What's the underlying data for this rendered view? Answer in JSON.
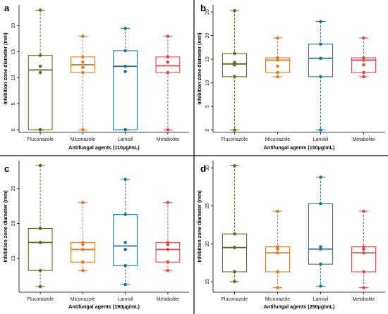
{
  "figure": {
    "colors": {
      "Fluconazole": "#5a6e1e",
      "Miconazole": "#e07b2a",
      "Lamisil": "#1f7799",
      "Metabolite": "#e84a4a"
    }
  },
  "chart_data": [
    {
      "panel": "a",
      "type": "box",
      "categories": [
        "Fluconazole",
        "Miconazole",
        "Lamisil",
        "Metabolite"
      ],
      "xlabel": "Antifungal agents (110µg/mL)",
      "ylabel": "Inhibition zone diameter (mm)",
      "ylim": [
        -0.5,
        24
      ],
      "yticks": [
        0,
        5,
        10,
        15,
        20
      ],
      "grid": false,
      "series": [
        {
          "box": {
            "min": 0,
            "q1": 0,
            "median": 11.5,
            "q3": 14.3,
            "max": 23
          },
          "points": [
            23,
            14.3,
            12.2,
            11,
            0,
            0
          ]
        },
        {
          "box": {
            "min": 0,
            "q1": 11,
            "median": 12.5,
            "q3": 14,
            "max": 18
          },
          "points": [
            18,
            14,
            13,
            12,
            11,
            0
          ]
        },
        {
          "box": {
            "min": 0,
            "q1": 0,
            "median": 12.2,
            "q3": 15.2,
            "max": 19.5
          },
          "points": [
            19.5,
            15.2,
            12.2,
            11.2,
            0,
            0
          ]
        },
        {
          "box": {
            "min": 0,
            "q1": 11,
            "median": 12.3,
            "q3": 14,
            "max": 18
          },
          "points": [
            18,
            14,
            13,
            11,
            11,
            0
          ]
        }
      ]
    },
    {
      "panel": "b",
      "type": "box",
      "categories": [
        "Fluconazole",
        "Miconazole",
        "Lamisil",
        "Metabolite"
      ],
      "xlabel": "Antifungal agents (150µg/mL)",
      "ylabel": "Inhibition zone diameter (mm)",
      "ylim": [
        -0.5,
        26.5
      ],
      "yticks": [
        0,
        5,
        10,
        15,
        20,
        25
      ],
      "grid": false,
      "series": [
        {
          "box": {
            "min": 0,
            "q1": 11.3,
            "median": 14,
            "q3": 16.2,
            "max": 25.3
          },
          "points": [
            25.3,
            16.2,
            14.3,
            13.8,
            11.3,
            0
          ]
        },
        {
          "box": {
            "min": 11.3,
            "q1": 12.2,
            "median": 14.8,
            "q3": 15.3,
            "max": 19.5
          },
          "points": [
            19.5,
            15.3,
            14.8,
            13.5,
            12.2,
            11.3
          ]
        },
        {
          "box": {
            "min": 0,
            "q1": 11.3,
            "median": 15.2,
            "q3": 18.2,
            "max": 23
          },
          "points": [
            23,
            18.2,
            15.2,
            15.2,
            11.3,
            0
          ]
        },
        {
          "box": {
            "min": 11.3,
            "q1": 12.2,
            "median": 14.8,
            "q3": 15.3,
            "max": 19.5
          },
          "points": [
            19.5,
            15.3,
            14.8,
            13.8,
            12.2,
            11.3
          ]
        }
      ]
    },
    {
      "panel": "c",
      "type": "box",
      "categories": [
        "Fluconazole",
        "Miconazole",
        "Lamisil",
        "Metabolite"
      ],
      "xlabel": "Antifungal agents (190µg/mL)",
      "ylabel": "Inhibition zone diameter (mm)",
      "ylim": [
        10.2,
        29
      ],
      "yticks": [
        15,
        20,
        25
      ],
      "grid": false,
      "series": [
        {
          "box": {
            "min": 11,
            "q1": 13.3,
            "median": 17.3,
            "q3": 19.3,
            "max": 28.3
          },
          "points": [
            28.3,
            19.3,
            17.3,
            17.3,
            13.3,
            11
          ]
        },
        {
          "box": {
            "min": 13.3,
            "q1": 14.5,
            "median": 16.3,
            "q3": 17.3,
            "max": 23
          },
          "points": [
            23,
            17.3,
            17,
            16.3,
            14.5,
            13.3
          ]
        },
        {
          "box": {
            "min": 11.3,
            "q1": 14,
            "median": 16.8,
            "q3": 21.3,
            "max": 26.3
          },
          "points": [
            26.3,
            21.3,
            17.3,
            16.3,
            14,
            11.3
          ]
        },
        {
          "box": {
            "min": 13.3,
            "q1": 14.5,
            "median": 16.3,
            "q3": 17.3,
            "max": 23
          },
          "points": [
            23,
            17.3,
            17,
            16.3,
            14.5,
            13.3
          ]
        }
      ]
    },
    {
      "panel": "d",
      "type": "box",
      "categories": [
        "Fluconazole",
        "Miconazole",
        "Lamisil",
        "Metabolite"
      ],
      "xlabel": "Antifungal agents (250µg/mL)",
      "ylabel": "Inhibition zone diameter (mm)",
      "ylim": [
        13.6,
        31
      ],
      "yticks": [
        15,
        20,
        25,
        30
      ],
      "grid": false,
      "series": [
        {
          "box": {
            "min": 15,
            "q1": 16.3,
            "median": 19.5,
            "q3": 21.3,
            "max": 30.3
          },
          "points": [
            30.3,
            21.3,
            19.5,
            19.5,
            16.3,
            15
          ]
        },
        {
          "box": {
            "min": 14.2,
            "q1": 16.3,
            "median": 18.8,
            "q3": 19.6,
            "max": 24.3
          },
          "points": [
            24.3,
            19.6,
            19.3,
            18.8,
            16.3,
            14.2
          ]
        },
        {
          "box": {
            "min": 14.4,
            "q1": 17.3,
            "median": 19.3,
            "q3": 25.3,
            "max": 28.8
          },
          "points": [
            28.8,
            25.3,
            19.6,
            19.3,
            17.3,
            14.4
          ]
        },
        {
          "box": {
            "min": 14.2,
            "q1": 16.3,
            "median": 18.8,
            "q3": 19.6,
            "max": 24.3
          },
          "points": [
            24.3,
            19.6,
            19.3,
            18.8,
            16.3,
            14.2
          ]
        }
      ]
    }
  ]
}
